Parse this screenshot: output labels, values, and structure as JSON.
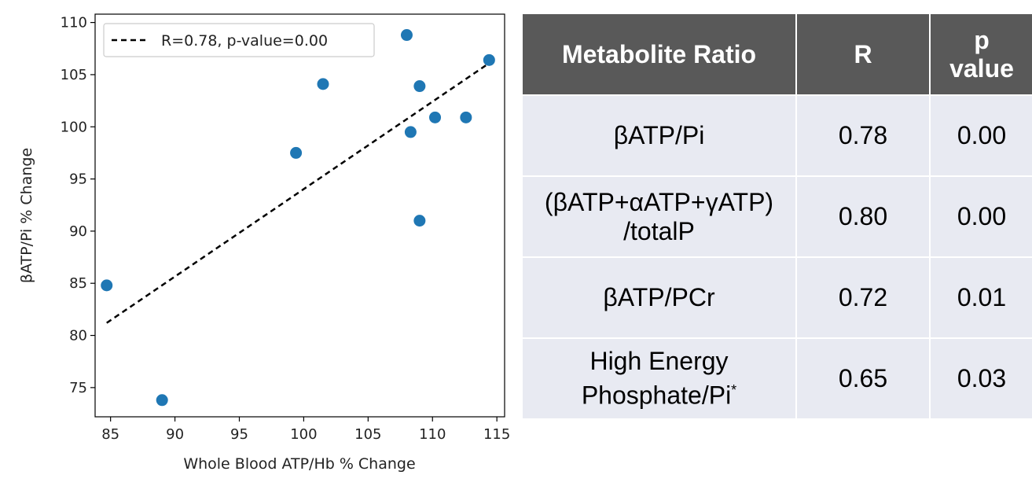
{
  "chart_data": {
    "type": "scatter",
    "xlabel": "Whole Blood ATP/Hb % Change",
    "ylabel": "βATP/Pi % Change",
    "xlim": [
      83.8,
      115.6
    ],
    "ylim": [
      72.2,
      110.8
    ],
    "xticks": [
      85,
      90,
      95,
      100,
      105,
      110,
      115
    ],
    "yticks": [
      75,
      80,
      85,
      90,
      95,
      100,
      105,
      110
    ],
    "points": [
      {
        "x": 84.7,
        "y": 84.8
      },
      {
        "x": 89.0,
        "y": 73.8
      },
      {
        "x": 99.4,
        "y": 97.5
      },
      {
        "x": 101.5,
        "y": 104.1
      },
      {
        "x": 108.0,
        "y": 108.8
      },
      {
        "x": 108.3,
        "y": 99.5
      },
      {
        "x": 109.0,
        "y": 103.9
      },
      {
        "x": 109.0,
        "y": 91.0
      },
      {
        "x": 110.2,
        "y": 100.9
      },
      {
        "x": 112.6,
        "y": 100.9
      },
      {
        "x": 114.4,
        "y": 106.4
      }
    ],
    "fit_line": {
      "x": [
        84.7,
        114.4
      ],
      "y": [
        81.2,
        106.1
      ]
    },
    "legend": {
      "label": "R=0.78, p-value=0.00",
      "placement": "upper-left"
    },
    "point_color": "#1f77b4",
    "line_color": "#000000",
    "grid": false
  },
  "table": {
    "headers": [
      "Metabolite Ratio",
      "R",
      "p value"
    ],
    "rows": [
      {
        "ratio": "βATP/Pi",
        "r": "0.78",
        "p": "0.00"
      },
      {
        "ratio": "(βATP+αATP+γATP)",
        "ratio2": "/totalP",
        "r": "0.80",
        "p": "0.00"
      },
      {
        "ratio": "βATP/PCr",
        "r": "0.72",
        "p": "0.01"
      },
      {
        "ratio": "High Energy",
        "ratio2": "Phosphate/Pi",
        "sup": "*",
        "r": "0.65",
        "p": "0.03"
      }
    ],
    "header_bg": "#595959",
    "row_bg": "#e8eaf2"
  }
}
